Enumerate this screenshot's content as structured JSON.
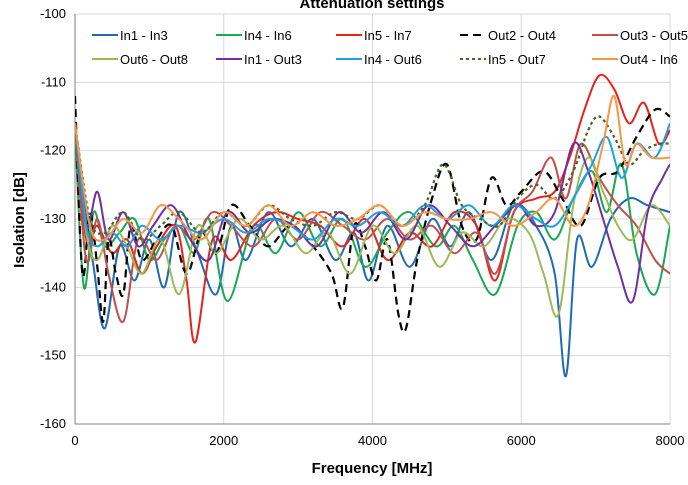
{
  "chart_data": {
    "type": "line",
    "title": "Attenuation settings",
    "xlabel": "Frequency [MHz]",
    "ylabel": "Isolation [dB]",
    "xlim": [
      0,
      8000
    ],
    "ylim": [
      -160,
      -100
    ],
    "xticks": [
      0,
      2000,
      4000,
      6000,
      8000
    ],
    "yticks": [
      -160,
      -150,
      -140,
      -130,
      -120,
      -110,
      -100
    ],
    "xtick_labels": [
      "0",
      "2000",
      "4000",
      "6000",
      "8000"
    ],
    "ytick_labels": [
      "-160",
      "-150",
      "-140",
      "-130",
      "-120",
      "-110",
      "-100"
    ],
    "grid": true,
    "legend": "top",
    "series": [
      {
        "name": "In1 - In3",
        "color": "#1f6bb5",
        "dash": "solid",
        "x": [
          0,
          150,
          250,
          400,
          600,
          800,
          1000,
          1200,
          1400,
          1650,
          1900,
          2100,
          2300,
          2600,
          2900,
          3200,
          3500,
          3750,
          3950,
          4200,
          4500,
          4800,
          5050,
          5300,
          5600,
          5900,
          6200,
          6450,
          6600,
          6750,
          6950,
          7200,
          7450,
          7700,
          8000
        ],
        "y": [
          -116,
          -129,
          -137,
          -146,
          -134,
          -139,
          -133,
          -140,
          -129,
          -135,
          -141,
          -131,
          -136,
          -129,
          -134,
          -130,
          -136,
          -132,
          -139,
          -131,
          -137,
          -130,
          -134,
          -129,
          -136,
          -128,
          -131,
          -138,
          -153,
          -133,
          -137,
          -130,
          -127,
          -128,
          -129
        ]
      },
      {
        "name": "In4 - In6",
        "color": "#1aa850",
        "dash": "solid",
        "x": [
          0,
          120,
          250,
          400,
          600,
          800,
          1000,
          1200,
          1400,
          1600,
          1800,
          2050,
          2400,
          2700,
          3000,
          3300,
          3600,
          3900,
          4200,
          4500,
          4850,
          5100,
          5350,
          5650,
          5950,
          6200,
          6450,
          6700,
          6950,
          7150,
          7350,
          7550,
          7800,
          8000
        ],
        "y": [
          -117,
          -140,
          -129,
          -134,
          -132,
          -130,
          -136,
          -133,
          -131,
          -135,
          -130,
          -142,
          -131,
          -135,
          -129,
          -134,
          -130,
          -137,
          -132,
          -129,
          -134,
          -131,
          -136,
          -141,
          -131,
          -129,
          -133,
          -127,
          -123,
          -129,
          -122,
          -135,
          -141,
          -131
        ]
      },
      {
        "name": "In5 - In7",
        "color": "#e8221b",
        "dash": "solid",
        "x": [
          0,
          150,
          300,
          500,
          700,
          900,
          1100,
          1350,
          1500,
          1620,
          1850,
          2100,
          2400,
          2700,
          3000,
          3300,
          3600,
          3900,
          4200,
          4500,
          4800,
          5100,
          5400,
          5650,
          5900,
          6200,
          6450,
          6650,
          6850,
          7050,
          7250,
          7450,
          7650,
          7850,
          8000
        ],
        "y": [
          -116,
          -133,
          -131,
          -135,
          -133,
          -138,
          -134,
          -131,
          -139,
          -148,
          -133,
          -136,
          -131,
          -129,
          -130,
          -131,
          -134,
          -130,
          -136,
          -132,
          -134,
          -129,
          -131,
          -139,
          -129,
          -127,
          -126,
          -121,
          -114,
          -109,
          -111,
          -116,
          -113,
          -119,
          -117
        ]
      },
      {
        "name": "Out2 - Out4",
        "color": "#000000",
        "dash": "8,5",
        "x": [
          0,
          100,
          200,
          300,
          380,
          450,
          550,
          650,
          750,
          900,
          1100,
          1300,
          1500,
          1700,
          1900,
          2100,
          2350,
          2600,
          2900,
          3200,
          3450,
          3600,
          3750,
          3900,
          4050,
          4200,
          4350,
          4450,
          4600,
          4800,
          5000,
          5200,
          5400,
          5600,
          5800,
          6000,
          6300,
          6550,
          6800,
          7050,
          7300,
          7550,
          7800,
          8000
        ],
        "y": [
          -112,
          -138,
          -129,
          -137,
          -145,
          -133,
          -138,
          -141,
          -131,
          -136,
          -133,
          -131,
          -138,
          -132,
          -135,
          -128,
          -131,
          -134,
          -131,
          -134,
          -138,
          -143,
          -131,
          -134,
          -139,
          -133,
          -144,
          -146,
          -136,
          -127,
          -122,
          -131,
          -133,
          -124,
          -128,
          -126,
          -123,
          -127,
          -131,
          -124,
          -123,
          -118,
          -114,
          -115
        ]
      },
      {
        "name": "Out3 - Out5",
        "color": "#c0504d",
        "dash": "solid",
        "x": [
          0,
          150,
          300,
          450,
          650,
          850,
          1100,
          1350,
          1600,
          1850,
          2100,
          2400,
          2700,
          3000,
          3300,
          3600,
          3900,
          4200,
          4500,
          4800,
          5100,
          5400,
          5650,
          5900,
          6150,
          6400,
          6600,
          6800,
          7050,
          7300,
          7550,
          7800,
          8000
        ],
        "y": [
          -116,
          -136,
          -130,
          -138,
          -145,
          -133,
          -136,
          -131,
          -133,
          -129,
          -131,
          -134,
          -130,
          -133,
          -129,
          -131,
          -133,
          -130,
          -133,
          -131,
          -135,
          -132,
          -138,
          -129,
          -126,
          -121,
          -127,
          -119,
          -124,
          -128,
          -131,
          -136,
          -138
        ]
      },
      {
        "name": "Out6 - Out8",
        "color": "#9bbb59",
        "dash": "solid",
        "x": [
          0,
          150,
          300,
          500,
          700,
          900,
          1150,
          1400,
          1650,
          1900,
          2200,
          2500,
          2800,
          3100,
          3400,
          3700,
          4000,
          4300,
          4600,
          4900,
          5200,
          5500,
          5800,
          6100,
          6300,
          6500,
          6700,
          6900,
          7100,
          7300,
          7500,
          7750,
          8000
        ],
        "y": [
          -116,
          -132,
          -136,
          -131,
          -134,
          -138,
          -133,
          -141,
          -131,
          -135,
          -130,
          -133,
          -131,
          -135,
          -132,
          -138,
          -131,
          -135,
          -131,
          -137,
          -132,
          -134,
          -130,
          -132,
          -138,
          -144,
          -128,
          -121,
          -126,
          -131,
          -133,
          -128,
          -131
        ]
      },
      {
        "name": "In1 - Out3",
        "color": "#7030a0",
        "dash": "solid",
        "x": [
          0,
          150,
          300,
          450,
          650,
          850,
          1050,
          1300,
          1550,
          1800,
          2050,
          2350,
          2650,
          2950,
          3250,
          3550,
          3850,
          4150,
          4450,
          4750,
          5050,
          5350,
          5650,
          5950,
          6200,
          6450,
          6700,
          6900,
          7100,
          7300,
          7500,
          7700,
          7900,
          8000
        ],
        "y": [
          -116,
          -131,
          -126,
          -133,
          -129,
          -134,
          -131,
          -128,
          -133,
          -136,
          -129,
          -132,
          -130,
          -131,
          -134,
          -129,
          -132,
          -129,
          -133,
          -128,
          -131,
          -134,
          -131,
          -128,
          -131,
          -129,
          -119,
          -123,
          -130,
          -137,
          -142,
          -129,
          -124,
          -122
        ]
      },
      {
        "name": "In4 - Out6",
        "color": "#1ea0e6",
        "dash": "solid",
        "x": [
          0,
          150,
          300,
          500,
          700,
          900,
          1150,
          1400,
          1700,
          2000,
          2300,
          2600,
          2900,
          3200,
          3500,
          3800,
          4100,
          4400,
          4700,
          5000,
          5300,
          5600,
          5900,
          6200,
          6450,
          6700,
          6950,
          7150,
          7350,
          7550,
          7800,
          8000
        ],
        "y": [
          -116,
          -131,
          -134,
          -132,
          -134,
          -131,
          -133,
          -131,
          -132,
          -130,
          -132,
          -130,
          -131,
          -133,
          -130,
          -131,
          -129,
          -131,
          -128,
          -130,
          -128,
          -131,
          -128,
          -130,
          -131,
          -127,
          -122,
          -118,
          -124,
          -119,
          -121,
          -116
        ]
      },
      {
        "name": "In5 - Out7",
        "color": "#4f6228",
        "dash": "3,3",
        "x": [
          0,
          200,
          400,
          650,
          900,
          1150,
          1400,
          1700,
          2000,
          2300,
          2600,
          2900,
          3200,
          3500,
          3800,
          4100,
          4400,
          4700,
          4950,
          5200,
          5450,
          5700,
          5950,
          6200,
          6450,
          6700,
          6900,
          7050,
          7250,
          7450,
          7650,
          7850,
          8000
        ],
        "y": [
          -116,
          -130,
          -132,
          -129,
          -133,
          -131,
          -129,
          -132,
          -129,
          -131,
          -128,
          -130,
          -131,
          -129,
          -130,
          -128,
          -131,
          -128,
          -122,
          -128,
          -130,
          -131,
          -127,
          -125,
          -127,
          -123,
          -117,
          -115,
          -118,
          -122,
          -120,
          -119,
          -119
        ]
      },
      {
        "name": "Out4 - In6",
        "color": "#f79646",
        "dash": "solid",
        "x": [
          0,
          200,
          400,
          650,
          900,
          1150,
          1400,
          1700,
          2000,
          2300,
          2600,
          2900,
          3200,
          3500,
          3800,
          4100,
          4400,
          4700,
          5000,
          5300,
          5600,
          5900,
          6200,
          6450,
          6700,
          6900,
          7100,
          7250,
          7400,
          7550,
          7750,
          8000
        ],
        "y": [
          -116,
          -131,
          -133,
          -130,
          -132,
          -128,
          -130,
          -133,
          -129,
          -131,
          -128,
          -131,
          -129,
          -131,
          -130,
          -128,
          -131,
          -129,
          -130,
          -130,
          -129,
          -131,
          -129,
          -127,
          -131,
          -128,
          -119,
          -112,
          -122,
          -119,
          -121,
          -121
        ]
      }
    ]
  }
}
